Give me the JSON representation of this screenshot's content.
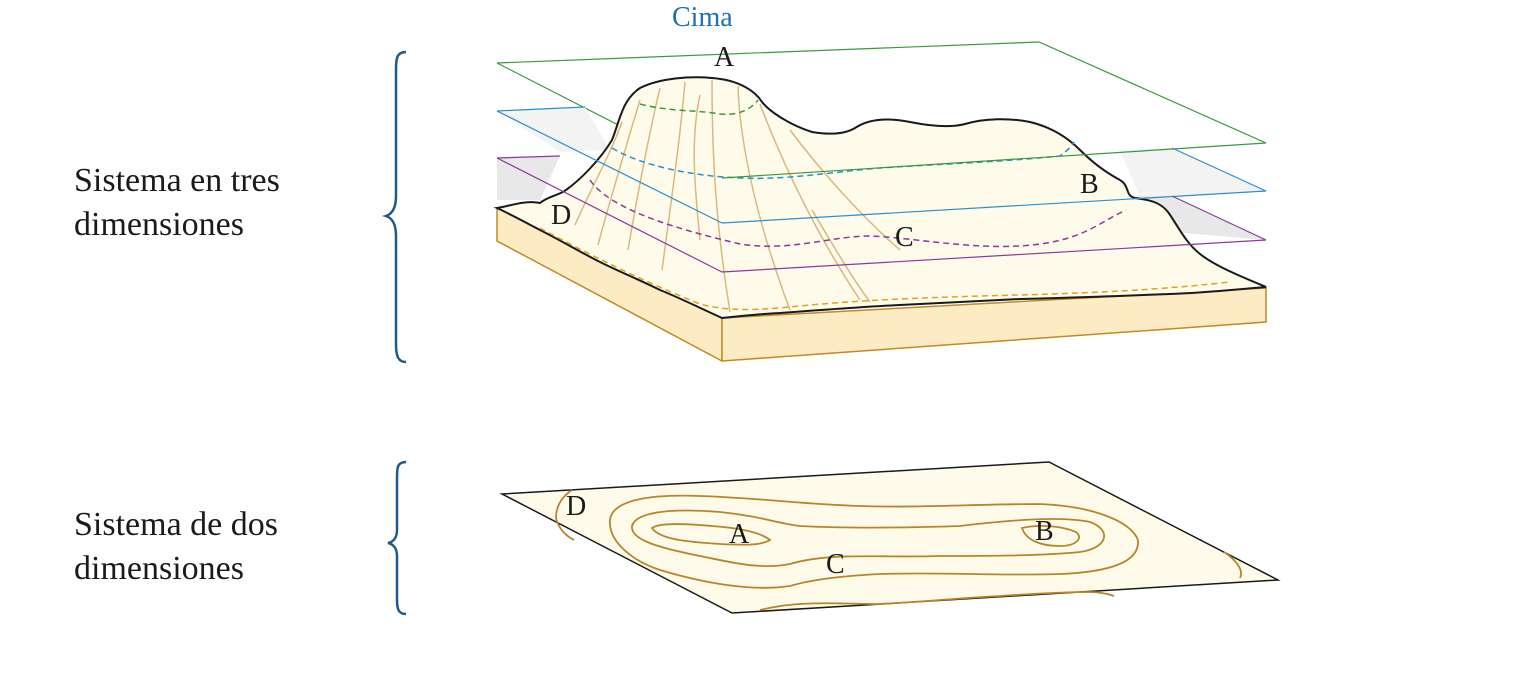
{
  "labels": {
    "three_d": {
      "line1": "Sistema en tres",
      "line2": "dimensiones"
    },
    "two_d": {
      "line1": "Sistema de dos",
      "line2": "dimensiones"
    }
  },
  "summit_label": "Cima",
  "points_3d": {
    "a": "A",
    "b": "B",
    "c": "C",
    "d": "D"
  },
  "points_2d": {
    "a": "A",
    "b": "B",
    "c": "C",
    "d": "D"
  },
  "colors": {
    "brace": "#1f5a8a",
    "summit_text": "#1f6fb5",
    "plane_top": "#3a9a3a",
    "plane_mid": "#2a8fcf",
    "plane_low": "#8a3a9a",
    "terrain_fill": "#fffbea",
    "base_fill": "#fdebc3",
    "base_stroke": "#c08a2a",
    "contour": "#b8862a",
    "slope_lines": "#d8b880",
    "outline": "#1a1a1a"
  }
}
